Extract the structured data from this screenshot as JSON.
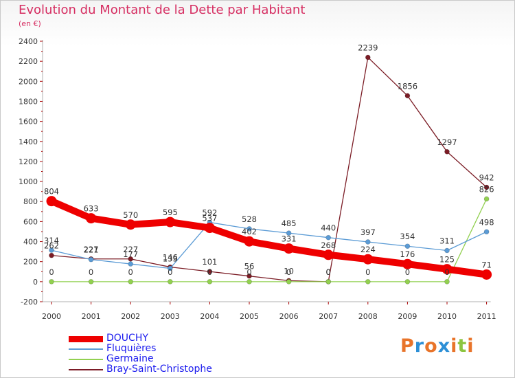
{
  "chart_data": {
    "type": "line",
    "title": "Evolution du Montant de la Dette par Habitant",
    "subtitle": "(en €)",
    "x": [
      "2000",
      "2001",
      "2002",
      "2003",
      "2004",
      "2005",
      "2006",
      "2007",
      "2008",
      "2009",
      "2010",
      "2011"
    ],
    "ylim": [
      -200,
      2400
    ],
    "yticks": [
      -200,
      0,
      200,
      400,
      600,
      800,
      1000,
      1200,
      1400,
      1600,
      1800,
      2000,
      2200,
      2400
    ],
    "grid": false,
    "legend_position": "bottom-left",
    "series": [
      {
        "name": "DOUCHY",
        "color": "#ee0000",
        "values": [
          804,
          633,
          570,
          595,
          537,
          402,
          331,
          268,
          224,
          176,
          125,
          71
        ]
      },
      {
        "name": "Fluquières",
        "color": "#5b9bd5",
        "values": [
          314,
          221,
          177,
          133,
          592,
          528,
          485,
          440,
          397,
          354,
          311,
          498
        ]
      },
      {
        "name": "Germaine",
        "color": "#92d050",
        "values": [
          0,
          0,
          0,
          0,
          0,
          0,
          0,
          0,
          0,
          0,
          0,
          826
        ]
      },
      {
        "name": "Bray-Saint-Christophe",
        "color": "#7b1c25",
        "values": [
          262,
          227,
          227,
          146,
          101,
          56,
          10,
          0,
          2239,
          1856,
          1297,
          942
        ]
      }
    ]
  },
  "logo": {
    "text": "Proxiti",
    "colors": [
      "#e8742a",
      "#2c8fd6",
      "#e8742a",
      "#2c8fd6",
      "#e8742a",
      "#8cc540",
      "#e8742a"
    ]
  }
}
